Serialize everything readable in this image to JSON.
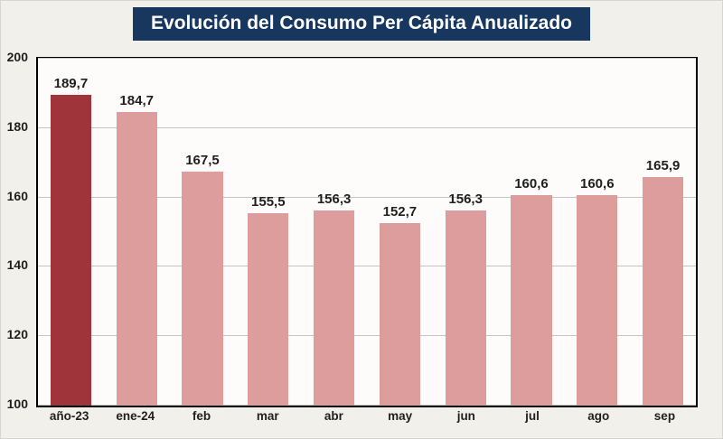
{
  "title": "Evolución del Consumo Per Cápita Anualizado",
  "colors": {
    "title_bg": "#17375E",
    "title_text": "#FFFFFF",
    "bar_default": "#DC9D9C",
    "bar_highlight": "#9F353B",
    "page_bg": "#F2F0EA"
  },
  "chart_data": {
    "type": "bar",
    "title": "Evolución del Consumo Per Cápita Anualizado",
    "categories": [
      "año-23",
      "ene-24",
      "feb",
      "mar",
      "abr",
      "may",
      "jun",
      "jul",
      "ago",
      "sep"
    ],
    "values": [
      189.7,
      184.7,
      167.5,
      155.5,
      156.3,
      152.7,
      156.3,
      160.6,
      160.6,
      165.9
    ],
    "value_labels": [
      "189,7",
      "184,7",
      "167,5",
      "155,5",
      "156,3",
      "152,7",
      "156,3",
      "160,6",
      "160,6",
      "165,9"
    ],
    "highlight_index": 0,
    "xlabel": "",
    "ylabel": "",
    "ylim": [
      100,
      200
    ],
    "yticks": [
      100,
      120,
      140,
      160,
      180,
      200
    ],
    "grid": true,
    "legend": "none"
  }
}
